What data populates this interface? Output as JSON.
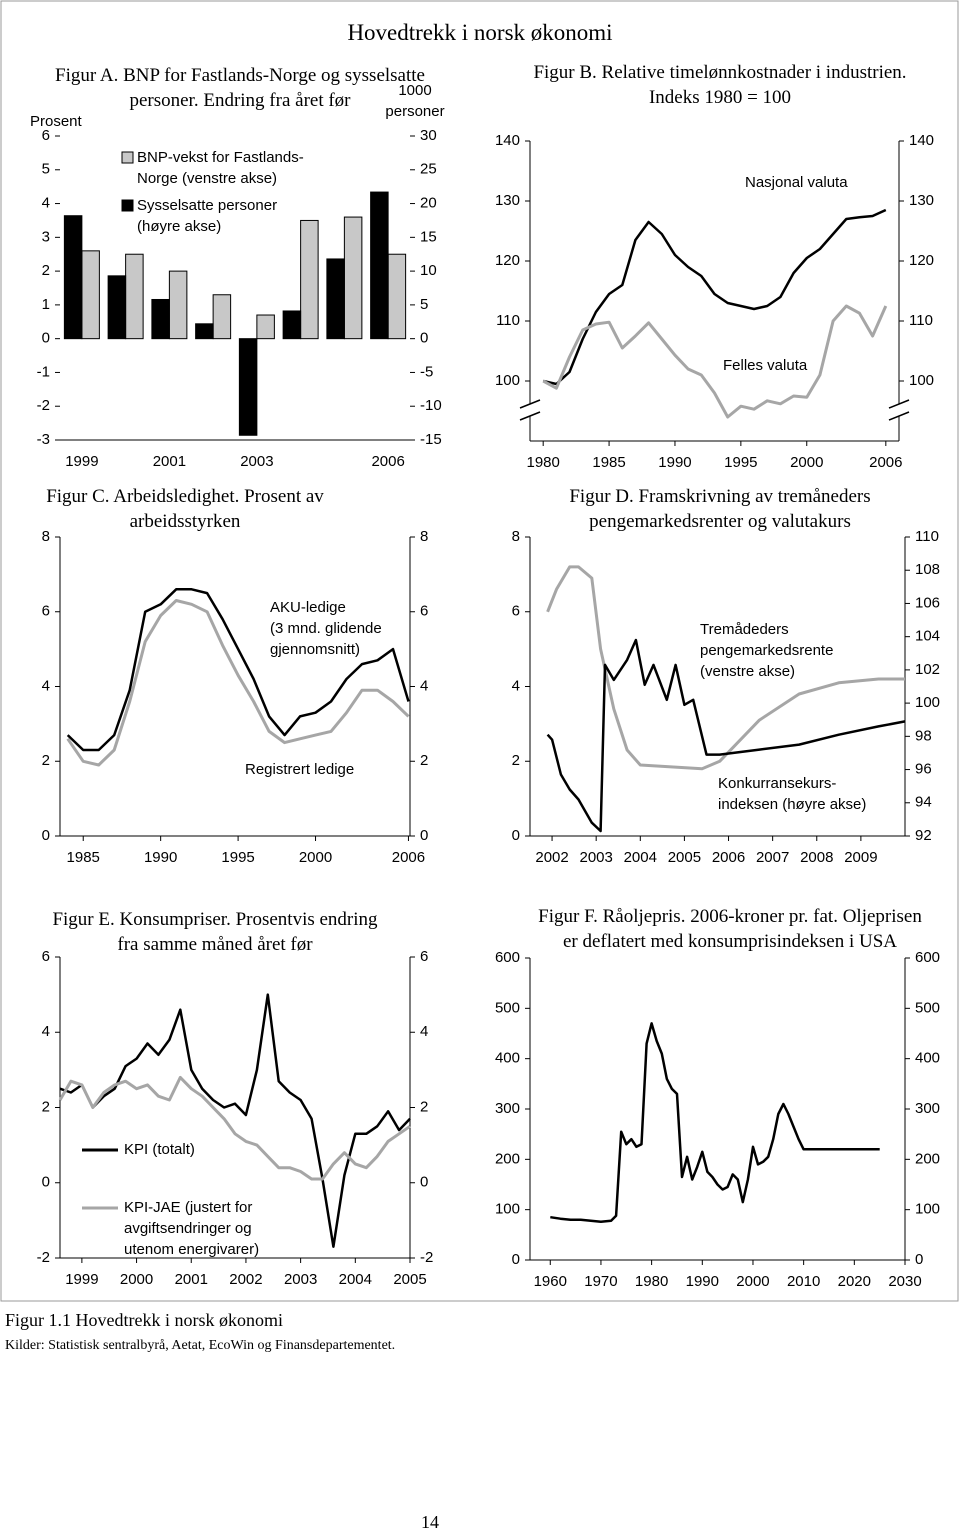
{
  "header": "Hovedtrekk i norsk økonomi",
  "caption": "Figur 1.1 Hovedtrekk i norsk økonomi",
  "source": "Kilder: Statistisk sentralbyrå, Aetat, EcoWin og Finansdepartementet.",
  "page_number": "14",
  "chart_data": [
    {
      "type": "bar",
      "title": "Figur A. BNP for Fastlands-Norge og sysselsatte\npersoner. Endring fra året før",
      "y_label": "Prosent",
      "y2_label": "1000\npersoner",
      "categories": [
        "1999",
        null,
        "2001",
        null,
        "2003",
        null,
        null,
        "2006"
      ],
      "series": [
        {
          "name": "BNP-vekst for Fastlands-\nNorge (venstre akse)",
          "color": "#c8c8c8",
          "values": [
            2.6,
            2.5,
            2.0,
            1.3,
            0.7,
            3.5,
            3.6,
            2.5
          ]
        },
        {
          "name": "Sysselsatte personer\n(høyre akse)",
          "color": "#000000",
          "axis": "y2",
          "values": [
            18.2,
            9.3,
            5.8,
            2.2,
            -14.3,
            4.1,
            11.8,
            21.7
          ]
        }
      ],
      "ylim": [
        -3,
        6
      ],
      "yticks": [
        6,
        5,
        4,
        3,
        2,
        1,
        0,
        -1,
        -2,
        -3
      ],
      "y2lim": [
        -15,
        30
      ],
      "y2ticks": [
        30,
        25,
        20,
        15,
        10,
        5,
        0,
        -5,
        -10,
        -15
      ]
    },
    {
      "type": "line",
      "title": "Figur B. Relative timelønnkostnader i industrien.\nIndeks 1980 = 100",
      "x": [
        1980,
        1981,
        1982,
        1983,
        1984,
        1985,
        1986,
        1987,
        1988,
        1989,
        1990,
        1991,
        1992,
        1993,
        1994,
        1995,
        1996,
        1997,
        1998,
        1999,
        2000,
        2001,
        2002,
        2003,
        2004,
        2005,
        2006
      ],
      "series": [
        {
          "name": "Nasjonal valuta",
          "color": "#000000",
          "values": [
            100,
            99.5,
            101.5,
            107,
            111.5,
            114.5,
            116,
            123.5,
            126.5,
            124.5,
            121,
            119,
            117.5,
            114.5,
            113,
            112.5,
            112,
            112.5,
            114,
            118,
            120.5,
            122,
            124.5,
            127,
            127.3,
            127.5,
            128.5
          ]
        },
        {
          "name": "Felles valuta",
          "color": "#a6a6a6",
          "values": [
            100,
            98.8,
            104,
            108.5,
            109.5,
            109.8,
            105.5,
            107.5,
            109.7,
            107,
            104.3,
            102,
            101,
            98,
            94,
            95.8,
            95.3,
            96.7,
            96.2,
            97.5,
            97.3,
            101,
            110,
            112.5,
            111.3,
            107.5,
            112.5
          ]
        }
      ],
      "xlim": [
        1979,
        2007
      ],
      "xticks": [
        1980,
        1985,
        1990,
        1995,
        2000,
        2006
      ],
      "ylim": [
        90,
        140
      ],
      "yticks": [
        140,
        130,
        120,
        110,
        100
      ],
      "y2lim": [
        90,
        140
      ],
      "y2ticks": [
        140,
        130,
        120,
        110,
        100
      ]
    },
    {
      "type": "line",
      "title": "Figur C. Arbeidsledighet. Prosent av\narbeidsstyrken",
      "x": [
        1984,
        1985,
        1986,
        1987,
        1988,
        1989,
        1990,
        1991,
        1992,
        1993,
        1994,
        1995,
        1996,
        1997,
        1998,
        1999,
        2000,
        2001,
        2002,
        2003,
        2004,
        2005,
        2006
      ],
      "series": [
        {
          "name": "AKU-ledige\n(3 mnd. glidende\ngjennomsnitt)",
          "color": "#000000",
          "values": [
            2.7,
            2.3,
            2.3,
            2.7,
            3.9,
            6.0,
            6.2,
            6.6,
            6.6,
            6.5,
            5.8,
            5.0,
            4.2,
            3.2,
            2.7,
            3.2,
            3.3,
            3.6,
            4.2,
            4.6,
            4.7,
            5.0,
            3.6
          ]
        },
        {
          "name": "Registrert ledige",
          "color": "#a6a6a6",
          "values": [
            2.6,
            2.0,
            1.9,
            2.3,
            3.6,
            5.2,
            5.9,
            6.3,
            6.2,
            6.0,
            5.1,
            4.3,
            3.6,
            2.8,
            2.5,
            2.6,
            2.7,
            2.8,
            3.3,
            3.9,
            3.9,
            3.6,
            3.2
          ]
        }
      ],
      "xlim": [
        1983.5,
        2006.1
      ],
      "xticks": [
        1985,
        1990,
        1995,
        2000,
        2006
      ],
      "ylim": [
        0,
        8
      ],
      "yticks": [
        8,
        6,
        4,
        2,
        0
      ],
      "y2lim": [
        0,
        8
      ],
      "y2ticks": [
        8,
        6,
        4,
        2,
        0
      ]
    },
    {
      "type": "line",
      "title": "Figur D. Framskrivning av tremåneders\npengemarkedsrenter og valutakurs",
      "series": [
        {
          "name": "Tremådeders\npengemarkedsrente\n(venstre akse)",
          "color": "#a6a6a6",
          "x": [
            2001.9,
            2002.1,
            2002.4,
            2002.6,
            2002.9,
            2003.1,
            2003.4,
            2003.7,
            2004.0,
            2005.4,
            2005.8,
            2006.7,
            2007.6,
            2008.5,
            2009.4,
            2010.0
          ],
          "values": [
            6.0,
            6.6,
            7.2,
            7.2,
            6.9,
            5.0,
            3.4,
            2.3,
            1.9,
            1.8,
            2.0,
            3.1,
            3.8,
            4.1,
            4.2,
            4.2
          ]
        },
        {
          "name": "Konkurransekurs-\nindeksen (høyre akse)",
          "color": "#000000",
          "axis": "y2",
          "x": [
            2001.9,
            2002.0,
            2002.2,
            2002.4,
            2002.6,
            2002.9,
            2003.1,
            2003.2,
            2003.4,
            2003.7,
            2003.9,
            2004.1,
            2004.3,
            2004.6,
            2004.8,
            2005.0,
            2005.2,
            2005.5,
            2005.8,
            2006.7,
            2007.6,
            2008.5,
            2009.4,
            2010.0
          ],
          "values": [
            98.1,
            97.8,
            95.7,
            94.8,
            94.2,
            92.8,
            92.3,
            102.3,
            101.4,
            102.6,
            103.8,
            101.1,
            102.3,
            100.2,
            102.3,
            99.9,
            100.2,
            96.9,
            96.9,
            97.2,
            97.5,
            98.1,
            98.6,
            98.9
          ]
        }
      ],
      "xlim": [
        2001.5,
        2010
      ],
      "xticks": [
        2002,
        2003,
        2004,
        2005,
        2006,
        2007,
        2008,
        2009
      ],
      "ylim": [
        0,
        8
      ],
      "yticks": [
        8,
        6,
        4,
        2,
        0
      ],
      "y2lim": [
        92,
        110
      ],
      "y2ticks": [
        110,
        108,
        106,
        104,
        102,
        100,
        98,
        96,
        94,
        92
      ]
    },
    {
      "type": "line",
      "title": "Figur E. Konsumpriser. Prosentvis endring\nfra samme måned året før",
      "x": [
        1998.6,
        1998.8,
        1999.0,
        1999.2,
        1999.4,
        1999.6,
        1999.8,
        2000.0,
        2000.2,
        2000.4,
        2000.6,
        2000.8,
        2001.0,
        2001.2,
        2001.4,
        2001.6,
        2001.8,
        2002.0,
        2002.2,
        2002.4,
        2002.6,
        2002.8,
        2003.0,
        2003.2,
        2003.4,
        2003.6,
        2003.8,
        2004.0,
        2004.2,
        2004.4,
        2004.6,
        2004.8,
        2005.0
      ],
      "series": [
        {
          "name": "KPI (totalt)",
          "color": "#000000",
          "values": [
            2.5,
            2.4,
            2.6,
            2.0,
            2.3,
            2.5,
            3.1,
            3.3,
            3.7,
            3.4,
            3.8,
            4.6,
            3.0,
            2.5,
            2.2,
            2.0,
            2.1,
            1.8,
            3.0,
            5.0,
            2.7,
            2.4,
            2.2,
            1.7,
            0.1,
            -1.7,
            0.2,
            1.3,
            1.3,
            1.5,
            1.9,
            1.4,
            1.7
          ]
        },
        {
          "name": "KPI-JAE (justert for\navgiftsendringer og\nutenom energivarer)",
          "color": "#a6a6a6",
          "values": [
            2.2,
            2.7,
            2.6,
            2.0,
            2.4,
            2.6,
            2.7,
            2.5,
            2.6,
            2.3,
            2.2,
            2.8,
            2.5,
            2.3,
            2.0,
            1.7,
            1.3,
            1.1,
            1.0,
            0.7,
            0.4,
            0.4,
            0.3,
            0.1,
            0.1,
            0.5,
            0.8,
            0.5,
            0.4,
            0.7,
            1.1,
            1.3,
            1.5
          ]
        }
      ],
      "xlim": [
        1998.6,
        2005.0
      ],
      "xticks": [
        1999,
        2000,
        2001,
        2002,
        2003,
        2004,
        2005
      ],
      "ylim": [
        -2,
        6
      ],
      "yticks": [
        6,
        4,
        2,
        0,
        -2
      ],
      "y2lim": [
        -2,
        6
      ],
      "y2ticks": [
        6,
        4,
        2,
        0,
        -2
      ]
    },
    {
      "type": "line",
      "title": "Figur F.  Råoljepris. 2006-kroner pr. fat. Oljeprisen\ner deflatert med konsumprisindeksen i USA",
      "x": [
        1960,
        1962,
        1964,
        1966,
        1968,
        1970,
        1972,
        1973,
        1974,
        1975,
        1976,
        1977,
        1978,
        1979,
        1980,
        1981,
        1982,
        1983,
        1984,
        1985,
        1986,
        1987,
        1988,
        1989,
        1990,
        1991,
        1992,
        1993,
        1994,
        1995,
        1996,
        1997,
        1998,
        1999,
        2000,
        2001,
        2002,
        2003,
        2004,
        2005,
        2006,
        2007,
        2008,
        2009,
        2010,
        2015,
        2020,
        2025
      ],
      "series": [
        {
          "color": "#000000",
          "values": [
            85,
            82,
            80,
            80,
            78,
            76,
            78,
            88,
            255,
            230,
            240,
            225,
            230,
            430,
            470,
            435,
            410,
            360,
            340,
            330,
            165,
            205,
            160,
            185,
            215,
            175,
            165,
            150,
            140,
            145,
            170,
            160,
            115,
            160,
            225,
            190,
            195,
            205,
            240,
            290,
            310,
            290,
            265,
            240,
            220,
            220,
            220,
            220
          ]
        }
      ],
      "xlim": [
        1956,
        2030
      ],
      "xticks": [
        1960,
        1970,
        1980,
        1990,
        2000,
        2010,
        2020,
        2030
      ],
      "ylim": [
        0,
        600
      ],
      "yticks": [
        600,
        500,
        400,
        300,
        200,
        100,
        0
      ],
      "y2lim": [
        0,
        600
      ],
      "y2ticks": [
        600,
        500,
        400,
        300,
        200,
        100,
        0
      ]
    }
  ]
}
